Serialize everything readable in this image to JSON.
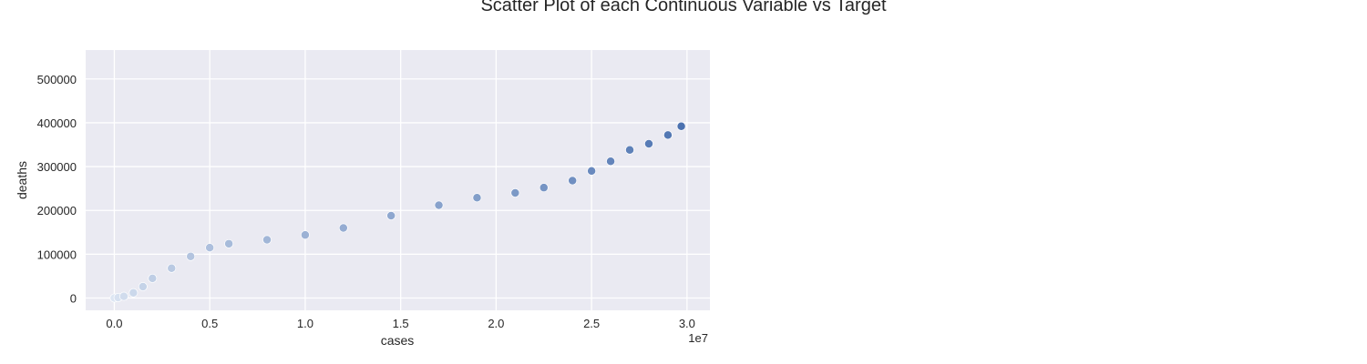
{
  "figure": {
    "title": "Scatter Plot of each Continuous Variable vs Target"
  },
  "chart_data": {
    "type": "scatter",
    "title": "",
    "xlabel": "cases",
    "ylabel": "deaths",
    "x_offset_label": "1e7",
    "xlim": [
      -0.15,
      3.12
    ],
    "ylim": [
      -28000,
      566000
    ],
    "x_ticks": [
      0.0,
      0.5,
      1.0,
      1.5,
      2.0,
      2.5,
      3.0
    ],
    "x_tick_labels": [
      "0.0",
      "0.5",
      "1.0",
      "1.5",
      "2.0",
      "2.5",
      "3.0"
    ],
    "y_ticks": [
      0,
      100000,
      200000,
      300000,
      400000,
      500000
    ],
    "y_tick_labels": [
      "0",
      "100000",
      "200000",
      "300000",
      "400000",
      "500000"
    ],
    "grid": true,
    "style": {
      "background": "#eaeaf2",
      "grid": "#ffffff",
      "point_edge": "#ffffff",
      "color_light": "#dde6f3",
      "color_dark": "#4c72b0"
    },
    "x": [
      0.0,
      0.02,
      0.05,
      0.1,
      0.15,
      0.2,
      0.3,
      0.4,
      0.5,
      0.6,
      0.8,
      1.0,
      1.2,
      1.45,
      1.7,
      1.9,
      2.1,
      2.25,
      2.4,
      2.5,
      2.6,
      2.7,
      2.8,
      2.9,
      2.97
    ],
    "values": [
      0,
      1000,
      4000,
      12000,
      26000,
      45000,
      68000,
      95000,
      115000,
      124000,
      133000,
      144000,
      160000,
      188000,
      212000,
      229000,
      240000,
      252000,
      268000,
      290000,
      312000,
      338000,
      352000,
      372000,
      392000
    ]
  }
}
